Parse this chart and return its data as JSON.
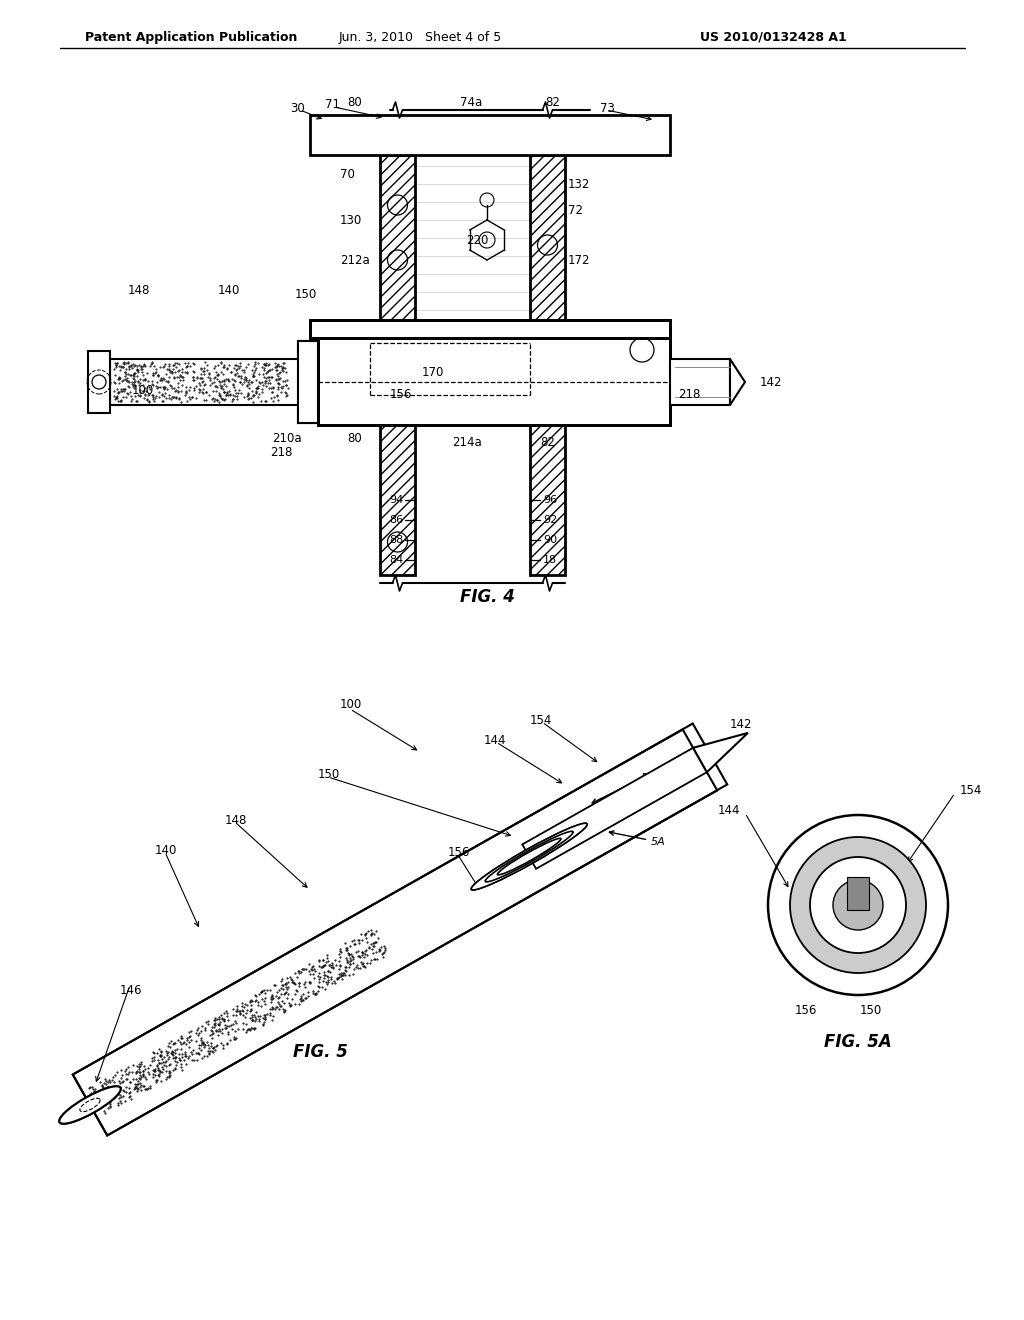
{
  "header_left": "Patent Application Publication",
  "header_mid": "Jun. 3, 2010   Sheet 4 of 5",
  "header_right": "US 2010/0132428 A1",
  "fig4_label": "FIG. 4",
  "fig5_label": "FIG. 5",
  "fig5a_label": "FIG. 5A",
  "bg_color": "#ffffff",
  "line_color": "#000000"
}
